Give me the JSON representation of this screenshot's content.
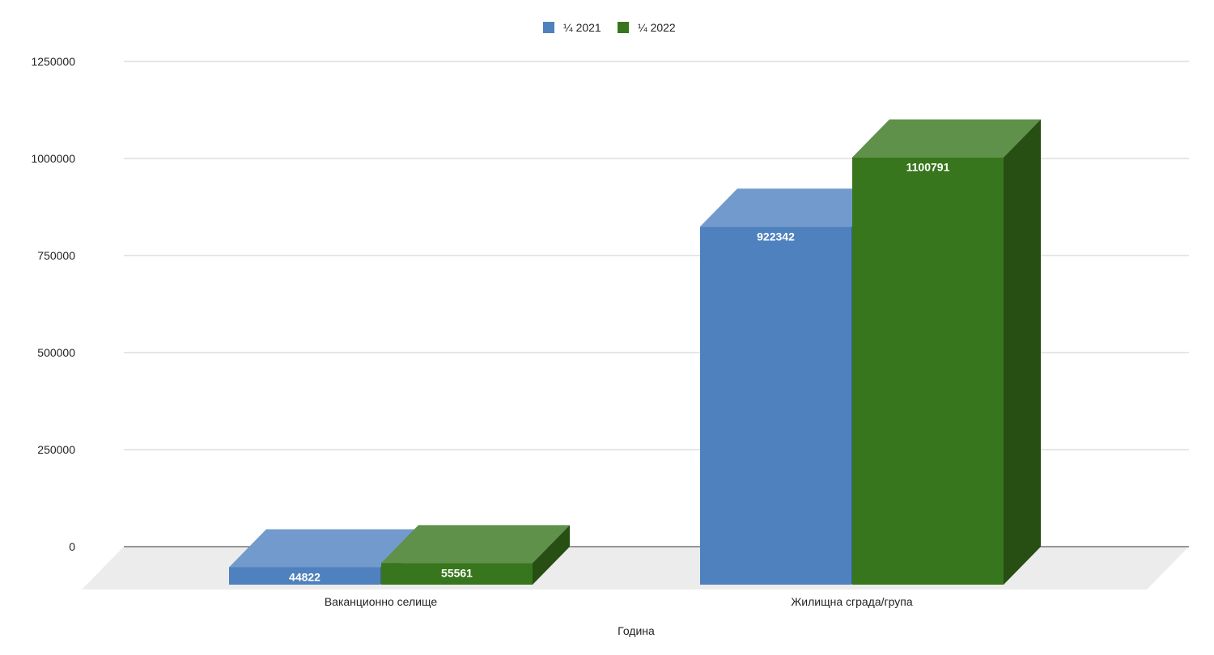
{
  "chart_data": {
    "type": "bar",
    "categories": [
      "Ваканционно селище",
      "Жилищна сграда/група"
    ],
    "series": [
      {
        "name": "¼ 2021",
        "values": [
          44822,
          922342
        ],
        "color": "#4e81bd",
        "top_color": "#729acc",
        "side_color": "#3a6396"
      },
      {
        "name": "¼ 2022",
        "values": [
          55561,
          1100791
        ],
        "color": "#38761d",
        "top_color": "#5f914b",
        "side_color": "#274e13"
      }
    ],
    "title": "",
    "xlabel": "Година",
    "ylabel": "",
    "ylim": [
      0,
      1250000
    ],
    "yticks": [
      0,
      250000,
      500000,
      750000,
      1000000,
      1250000
    ],
    "grid": true,
    "legend_position": "top"
  }
}
